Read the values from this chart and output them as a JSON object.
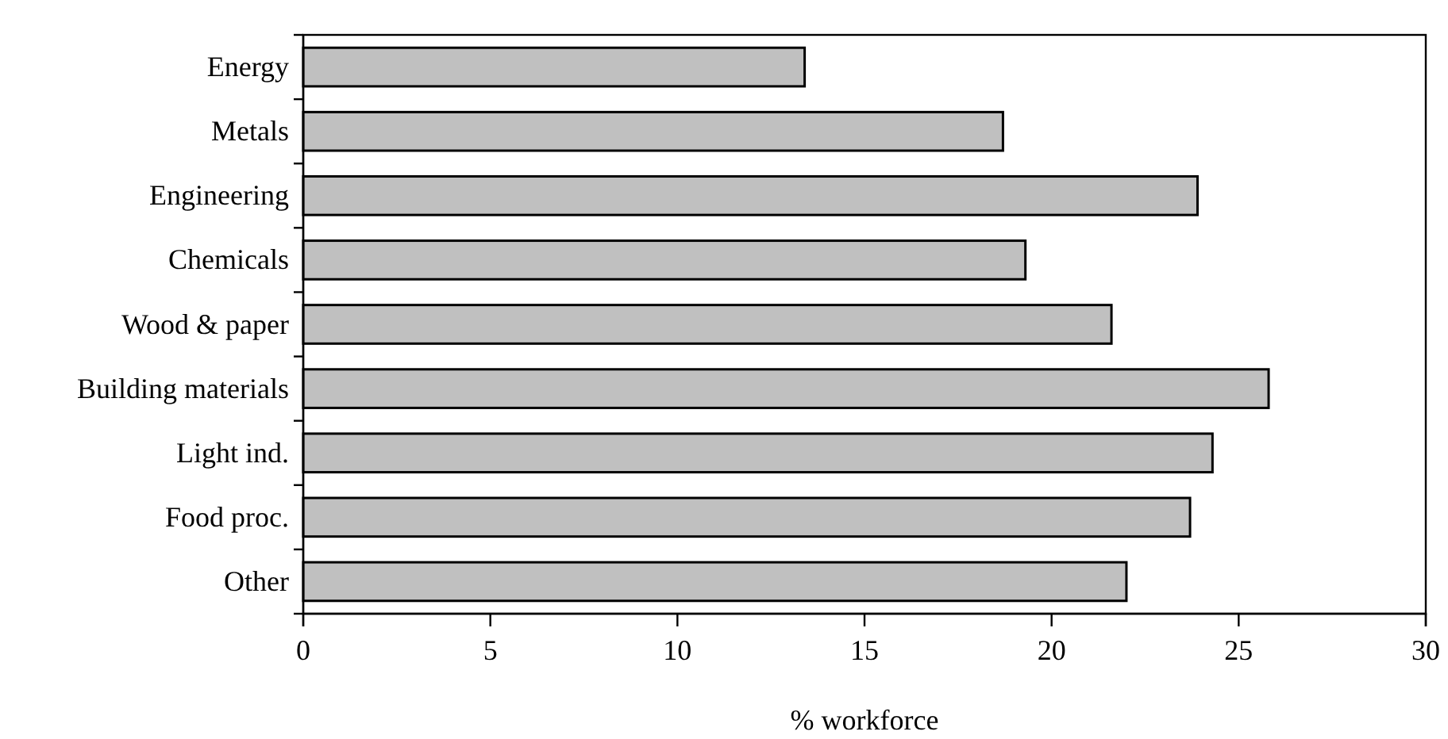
{
  "chart_data": {
    "type": "bar",
    "orientation": "horizontal",
    "categories": [
      "Energy",
      "Metals",
      "Engineering",
      "Chemicals",
      "Wood & paper",
      "Building materials",
      "Light ind.",
      "Food proc.",
      "Other"
    ],
    "values": [
      13.4,
      18.7,
      23.9,
      19.3,
      21.6,
      25.8,
      24.3,
      23.7,
      22.0
    ],
    "color": "#c0c0c0",
    "xlabel": "% workforce",
    "xlim": [
      0,
      30
    ],
    "xticks": [
      0,
      5,
      10,
      15,
      20,
      25,
      30
    ]
  }
}
